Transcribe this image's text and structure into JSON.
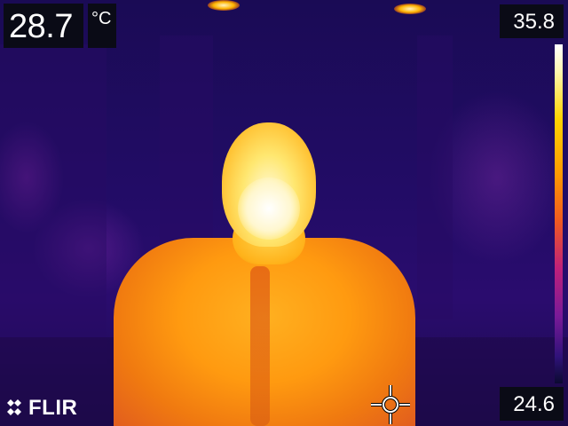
{
  "measurement": {
    "spot_temperature": "28.7",
    "unit": "°C"
  },
  "scale": {
    "max": "35.8",
    "min": "24.6",
    "palette": "iron"
  },
  "branding": {
    "logo_text": "FLIR"
  },
  "icons": {
    "spot_meter": "crosshair-icon",
    "logo_mark": "flir-diamond-icon"
  },
  "colors": {
    "overlay_bg": "#0a0b16",
    "overlay_text": "#ffffff",
    "hot": "#ffffff",
    "warm": "#ffb020",
    "cool": "#2a0c6e"
  }
}
